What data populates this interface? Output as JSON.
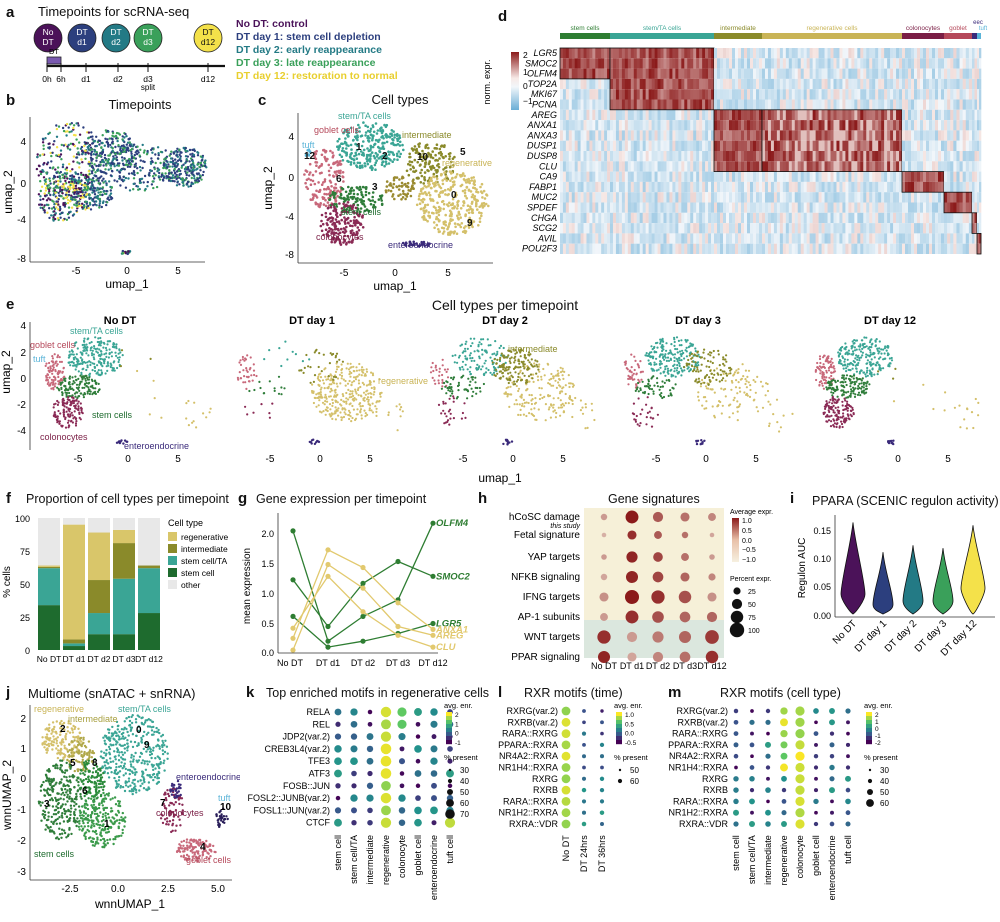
{
  "panels": {
    "a": {
      "label": "a",
      "title": "Timepoints for scRNA-seq",
      "circles": [
        {
          "l1": "No",
          "l2": "DT",
          "color": "#4b1259",
          "fg": "#fff"
        },
        {
          "l1": "DT",
          "l2": "d1",
          "color": "#2c3f7e",
          "fg": "#fff"
        },
        {
          "l1": "DT",
          "l2": "d2",
          "color": "#237a85",
          "fg": "#fff"
        },
        {
          "l1": "DT",
          "l2": "d3",
          "color": "#3aa05a",
          "fg": "#fff"
        },
        {
          "l1": "DT",
          "l2": "d12",
          "color": "#f4e14a",
          "fg": "#111"
        }
      ],
      "dt_box": "DT",
      "axis": [
        "0h",
        "6h",
        "d1",
        "d2",
        "d3",
        "d12"
      ],
      "split": "split",
      "legend": [
        {
          "text": "No DT: control",
          "color": "#4b1259"
        },
        {
          "text": "DT day 1: stem cell depletion",
          "color": "#2c3f7e"
        },
        {
          "text": "DT day 2: early reappearance",
          "color": "#237a85"
        },
        {
          "text": "DT day 3: late reappearance",
          "color": "#3aa05a"
        },
        {
          "text": "DT day 12: restoration to normal",
          "color": "#e8cf2e"
        }
      ]
    },
    "b": {
      "label": "b",
      "title": "Timepoints",
      "xlabel": "umap_1",
      "ylabel": "umap_2",
      "xticks": [
        "-5",
        "0",
        "5"
      ],
      "yticks": [
        "4",
        "0",
        "-4",
        "-8"
      ]
    },
    "c": {
      "label": "c",
      "title": "Cell types",
      "xlabel": "umap_1",
      "ylabel": "umap_2",
      "xticks": [
        "-5",
        "0",
        "5"
      ],
      "yticks": [
        "4",
        "0",
        "-4",
        "-8"
      ],
      "annotations": [
        {
          "text": "goblet cells",
          "color": "#b5485a"
        },
        {
          "text": "stem/TA cells",
          "color": "#3aa595"
        },
        {
          "text": "intermediate",
          "color": "#8a8a2a"
        },
        {
          "text": "tuft",
          "color": "#5ab4d8"
        },
        {
          "text": "regenerative",
          "color": "#c9b456"
        },
        {
          "text": "stem cells",
          "color": "#1e6b2e"
        },
        {
          "text": "colonocytes",
          "color": "#7a1e45"
        },
        {
          "text": "enteroendocrine",
          "color": "#3a2a7a"
        }
      ],
      "cluster_ids": [
        "1",
        "2",
        "10",
        "5",
        "12",
        "3",
        "6",
        "0",
        "9"
      ]
    },
    "d": {
      "label": "d",
      "groups": [
        {
          "name": "stem cells",
          "color": "#2e7d32"
        },
        {
          "name": "stem/TA cells",
          "color": "#3aa595"
        },
        {
          "name": "intermediate",
          "color": "#8a8a2a"
        },
        {
          "name": "regenerative cells",
          "color": "#c9b456"
        },
        {
          "name": "colonocytes",
          "color": "#7a1e45"
        },
        {
          "name": "goblet",
          "color": "#b5485a"
        },
        {
          "name": "eec",
          "color": "#3a2a7a"
        },
        {
          "name": "tuft",
          "color": "#5ab4d8"
        }
      ],
      "genes": [
        "LGR5",
        "SMOC2",
        "OLFM4",
        "TOP2A",
        "MKI67",
        "PCNA",
        "AREG",
        "ANXA1",
        "ANXA3",
        "DUSP1",
        "DUSP8",
        "CLU",
        "CA9",
        "FABP1",
        "MUC2",
        "SPDEF",
        "CHGA",
        "SCG2",
        "AVIL",
        "POU2F3"
      ],
      "colorbar_title": "norm. expr.",
      "colorbar_ticks": [
        "2",
        "1",
        "0",
        "−1"
      ]
    },
    "e": {
      "label": "e",
      "title": "Cell types per timepoint",
      "xlabel": "umap_1",
      "ylabel": "umap_2",
      "subtitles": [
        "No DT",
        "DT day 1",
        "DT day 2",
        "DT day 3",
        "DT day 12"
      ],
      "xticks": [
        "-5",
        "0",
        "5"
      ],
      "yticks": [
        "4",
        "2",
        "0",
        "-2",
        "-4"
      ],
      "annotations": [
        "stem/TA cells",
        "goblet cells",
        "tuft",
        "stem cells",
        "colonocytes",
        "enteroendocrine",
        "regenerative",
        "intermediate"
      ]
    },
    "f": {
      "label": "f",
      "title": "Proportion of cell types per timepoint",
      "ylabel": "% cells",
      "yticks": [
        "100",
        "75",
        "50",
        "25",
        "0"
      ],
      "legend_title": "Cell type",
      "legend": [
        {
          "name": "regenerative",
          "color": "#d9c66a"
        },
        {
          "name": "intermediate",
          "color": "#8a8a2a"
        },
        {
          "name": "stem cell/TA",
          "color": "#3aa595"
        },
        {
          "name": "stem cell",
          "color": "#1e6b2e"
        },
        {
          "name": "other",
          "color": "#e8e8e8"
        }
      ]
    },
    "g": {
      "label": "g",
      "title": "Gene expression per timepoint",
      "ylabel": "mean expression",
      "yticks": [
        "2.0",
        "1.5",
        "1.0",
        "0.5",
        "0.0"
      ]
    },
    "h": {
      "label": "h",
      "title": "Gene signatures",
      "rows": [
        "hCoSC damage",
        "Fetal signature",
        "YAP targets",
        "NFKB signaling",
        "IFNG targets",
        "AP-1 subunits",
        "WNT targets",
        "PPAR signaling"
      ],
      "row_note": "this study",
      "cols": [
        "No DT",
        "DT d1",
        "DT d2",
        "DT d3",
        "DT d12"
      ],
      "legend_color_title": "Average expr.",
      "legend_color_ticks": [
        "1.0",
        "0.5",
        "0.0",
        "−0.5",
        "−1.0"
      ],
      "legend_size_title": "Percent expr.",
      "legend_size_ticks": [
        "25",
        "50",
        "75",
        "100"
      ]
    },
    "i": {
      "label": "i",
      "title": "PPARA (SCENIC regulon activity)",
      "ylabel": "Regulon AUC",
      "yticks": [
        "0.15",
        "0.10",
        "0.05",
        "0.00"
      ]
    },
    "j": {
      "label": "j",
      "title": "Multiome (snATAC + snRNA)",
      "xlabel": "wnnUMAP_1",
      "ylabel": "wnnUMAP_2",
      "xticks": [
        "-2.5",
        "0.0",
        "2.5",
        "5.0"
      ],
      "yticks": [
        "2",
        "1",
        "0",
        "-1",
        "-2",
        "-3"
      ],
      "annotations": [
        {
          "text": "regenerative",
          "color": "#c9b456"
        },
        {
          "text": "intermediate",
          "color": "#a8a040"
        },
        {
          "text": "stem/TA cells",
          "color": "#3aa595"
        },
        {
          "text": "enteroendocrine",
          "color": "#3a2a7a"
        },
        {
          "text": "tuft",
          "color": "#5ab4d8"
        },
        {
          "text": "colonocytes",
          "color": "#7a1e45"
        },
        {
          "text": "stem cells",
          "color": "#1e6b2e"
        },
        {
          "text": "goblet cells",
          "color": "#b5485a"
        }
      ],
      "cluster_ids": [
        "2",
        "0",
        "5",
        "8",
        "3",
        "1",
        "9",
        "7",
        "10",
        "4",
        "6"
      ]
    },
    "k": {
      "label": "k",
      "title": "Top enriched motifs in regenerative cells",
      "rows": [
        "RELA",
        "REL",
        "JDP2(var.2)",
        "CREB3L4(var.2)",
        "TFE3",
        "ATF3",
        "FOSB::JUN",
        "FOSL2::JUNB(var.2)",
        "FOSL1::JUN(var.2)",
        "CTCF"
      ],
      "cols": [
        "stem cell",
        "stem cell/TA",
        "intermediate",
        "regenerative",
        "colonocyte",
        "goblet cell",
        "enteroendocrine",
        "tuft cell"
      ],
      "legend_color_title": "avg. enr.",
      "legend_color_ticks": [
        "2",
        "1",
        "0",
        "-1"
      ],
      "legend_size_title": "% present",
      "legend_size_ticks": [
        "30",
        "40",
        "50",
        "60",
        "70"
      ]
    },
    "l": {
      "label": "l",
      "title": "RXR motifs (time)",
      "rows": [
        "RXRG(var.2)",
        "RXRB(var.2)",
        "RARA::RXRG",
        "PPARA::RXRA",
        "NR4A2::RXRA",
        "NR1H4::RXRA",
        "RXRG",
        "RXRB",
        "RARA::RXRA",
        "NR1H2::RXRA",
        "RXRA::VDR"
      ],
      "cols": [
        "No DT",
        "DT 24hrs",
        "DT 36hrs"
      ],
      "legend_color_title": "avg. enr.",
      "legend_color_ticks": [
        "1.0",
        "0.5",
        "0.0",
        "-0.5"
      ],
      "legend_size_title": "% present",
      "legend_size_ticks": [
        "50",
        "60"
      ]
    },
    "m": {
      "label": "m",
      "title": "RXR motifs (cell type)",
      "rows": [
        "RXRG(var.2)",
        "RXRB(var.2)",
        "RARA::RXRG",
        "PPARA::RXRA",
        "NR4A2::RXRA",
        "NR1H4::RXRA",
        "RXRG",
        "RXRB",
        "RARA::RXRA",
        "NR1H2::RXRA",
        "RXRA::VDR"
      ],
      "cols": [
        "stem cell",
        "stem cell/TA",
        "intermediate",
        "regenerative",
        "colonocyte",
        "goblet cell",
        "enteroendocrine",
        "tuft cell"
      ],
      "legend_color_title": "avg. enr.",
      "legend_color_ticks": [
        "2",
        "1",
        "0",
        "-1",
        "-2"
      ],
      "legend_size_title": "% present",
      "legend_size_ticks": [
        "30",
        "40",
        "50",
        "60"
      ]
    }
  },
  "chart_data": [
    {
      "type": "bar",
      "title": "Proportion of cell types per timepoint",
      "ylabel": "% cells",
      "ylim": [
        0,
        100
      ],
      "categories": [
        "No DT",
        "DT d1",
        "DT d2",
        "DT d3",
        "DT d12"
      ],
      "series": [
        {
          "name": "stem cell",
          "values": [
            34,
            3,
            12,
            12,
            28
          ]
        },
        {
          "name": "stem cell/TA",
          "values": [
            28,
            2,
            16,
            42,
            34
          ]
        },
        {
          "name": "intermediate",
          "values": [
            1,
            3,
            25,
            27,
            2
          ]
        },
        {
          "name": "regenerative",
          "values": [
            1,
            87,
            36,
            10,
            0
          ]
        },
        {
          "name": "other",
          "values": [
            36,
            5,
            11,
            9,
            36
          ]
        }
      ]
    },
    {
      "type": "line",
      "title": "Gene expression per timepoint",
      "ylabel": "mean expression",
      "ylim": [
        0,
        2.3
      ],
      "categories": [
        "No DT",
        "DT d1",
        "DT d2",
        "DT d3",
        "DT d12"
      ],
      "series": [
        {
          "name": "OLFM4",
          "group": "stem",
          "values": [
            2.07,
            0.2,
            0.62,
            0.9,
            2.2
          ]
        },
        {
          "name": "SMOC2",
          "group": "stem",
          "values": [
            1.24,
            0.45,
            1.18,
            1.55,
            1.3
          ]
        },
        {
          "name": "LGR5",
          "group": "stem",
          "values": [
            0.62,
            0.1,
            0.2,
            0.33,
            0.5
          ]
        },
        {
          "name": "ANXA1",
          "group": "regen",
          "values": [
            0.25,
            1.75,
            1.45,
            0.85,
            0.4
          ]
        },
        {
          "name": "AREG",
          "group": "regen",
          "values": [
            0.05,
            1.5,
            1.1,
            0.45,
            0.3
          ]
        },
        {
          "name": "CLU",
          "group": "regen",
          "values": [
            0.42,
            1.3,
            0.7,
            0.3,
            0.1
          ]
        }
      ]
    },
    {
      "type": "violin",
      "title": "PPARA (SCENIC regulon activity)",
      "ylabel": "Regulon AUC",
      "ylim": [
        0,
        0.175
      ],
      "categories": [
        "No DT",
        "DT day 1",
        "DT day 2",
        "DT day 3",
        "DT day 12"
      ],
      "colors": [
        "#4b1259",
        "#2c3f7e",
        "#237a85",
        "#3aa05a",
        "#f4e14a"
      ],
      "maxima": [
        0.165,
        0.113,
        0.125,
        0.12,
        0.16
      ],
      "modes": [
        0.04,
        0.022,
        0.028,
        0.028,
        0.05
      ]
    }
  ]
}
